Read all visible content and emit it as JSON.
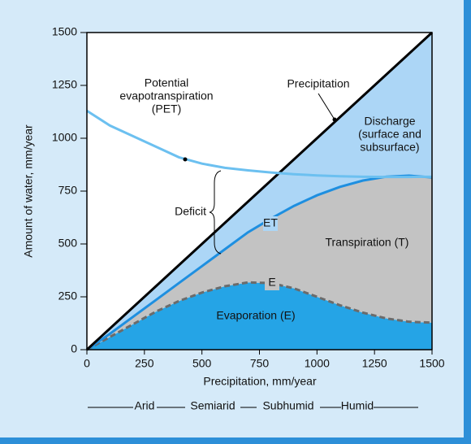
{
  "chart_data": {
    "type": "area",
    "x_label": "Precipitation, mm/year",
    "y_label": "Amount of water, mm/year",
    "xlim": [
      0,
      1500
    ],
    "ylim": [
      0,
      1500
    ],
    "xticks": [
      0,
      250,
      500,
      750,
      1000,
      1250,
      1500
    ],
    "yticks": [
      0,
      250,
      500,
      750,
      1000,
      1250,
      1500
    ],
    "x": [
      0,
      100,
      200,
      300,
      400,
      500,
      600,
      700,
      800,
      900,
      1000,
      1100,
      1200,
      1300,
      1400,
      1500
    ],
    "series": [
      {
        "label": [
          "E"
        ],
        "color": "#6b6b6b",
        "dashed": true,
        "fill": "#25a4e6",
        "area_label": [
          "Evaporation (E)"
        ],
        "values": [
          0,
          60,
          120,
          180,
          230,
          270,
          300,
          318,
          315,
          290,
          250,
          210,
          175,
          148,
          132,
          128
        ]
      },
      {
        "label": [
          "ET"
        ],
        "color": "#1e8fe0",
        "dashed": false,
        "fill": "#c3c3c3",
        "area_label": [
          "Transpiration (T)"
        ],
        "values": [
          0,
          75,
          155,
          235,
          315,
          395,
          475,
          555,
          620,
          680,
          730,
          770,
          800,
          818,
          823,
          815
        ]
      },
      {
        "label": [
          "Precipitation"
        ],
        "color": "#000000",
        "dashed": false,
        "fill": "#acd6f6",
        "area_label": [
          "Discharge",
          "(surface and",
          "subsurface)"
        ],
        "values": [
          0,
          100,
          200,
          300,
          400,
          500,
          600,
          700,
          800,
          900,
          1000,
          1100,
          1200,
          1300,
          1400,
          1500
        ]
      },
      {
        "label": [
          "Potential",
          "evapotranspiration",
          "(PET)"
        ],
        "color": "#6cc0f0",
        "dashed": false,
        "values": [
          1130,
          1060,
          1010,
          960,
          910,
          880,
          860,
          848,
          838,
          830,
          824,
          820,
          818,
          817,
          817,
          818
        ]
      }
    ],
    "deficit_label": "Deficit",
    "zones": [
      "Arid",
      "Semiarid",
      "Subhumid",
      "Humid"
    ]
  }
}
